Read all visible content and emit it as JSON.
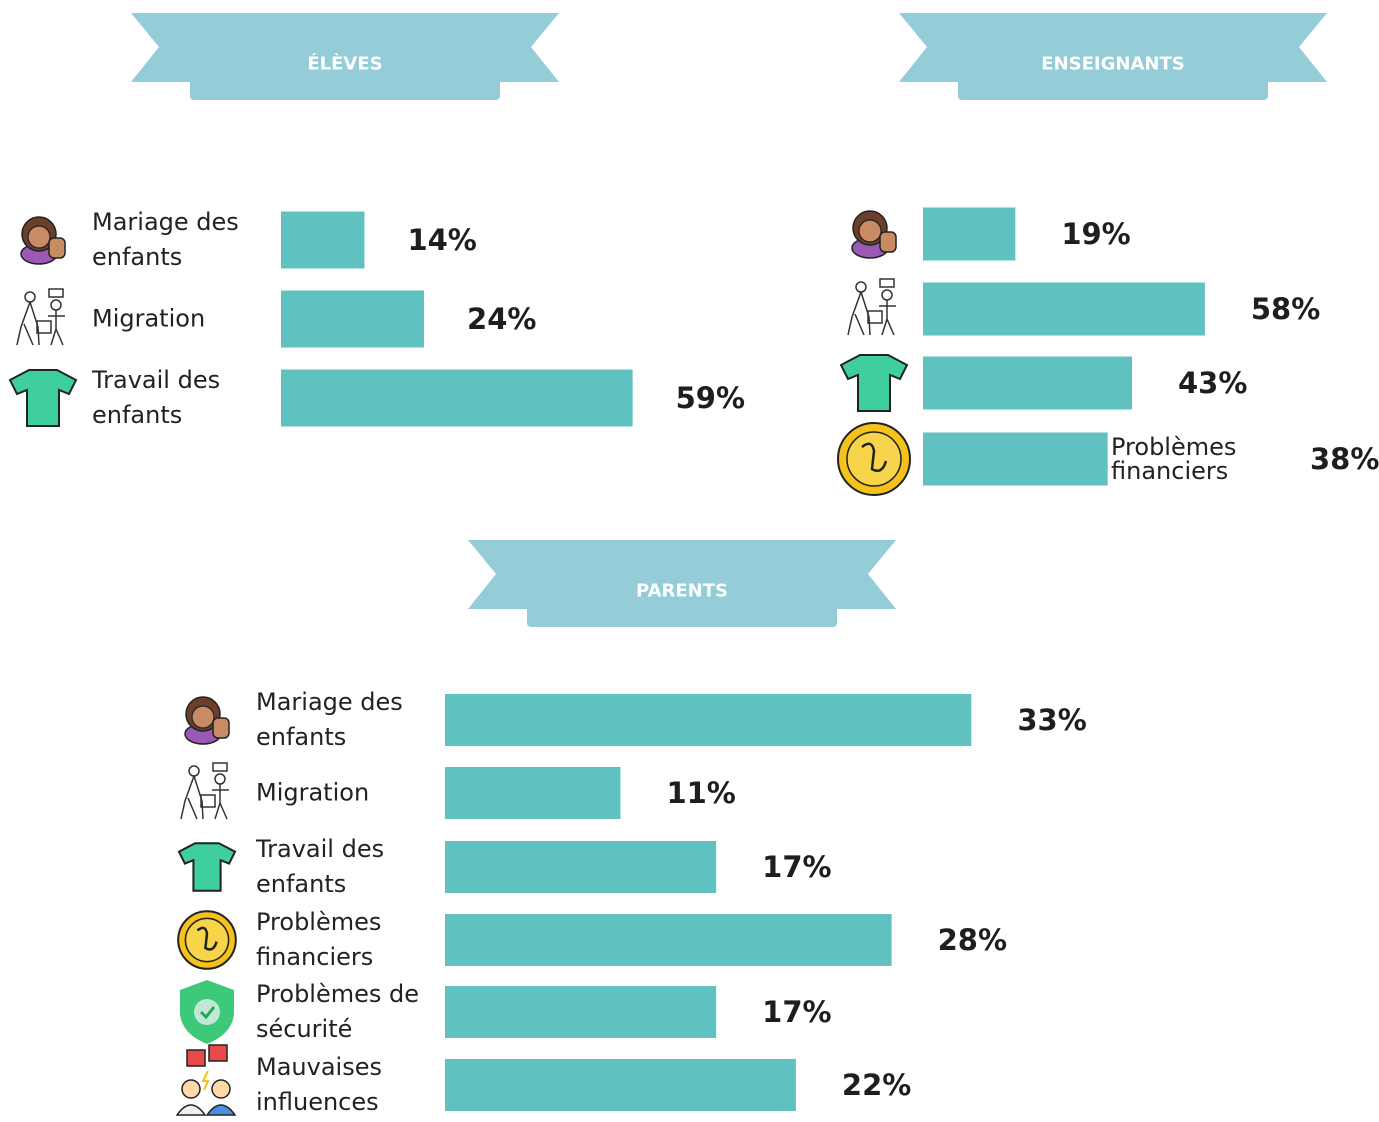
{
  "chart_data": [
    {
      "type": "bar",
      "title": "ÉLÈVES",
      "color": "#5fc1c0",
      "categories": [
        "Mariage des enfants",
        "Migration",
        "Travail des enfants"
      ],
      "values": [
        14,
        24,
        59
      ],
      "value_labels": [
        "14%",
        "24%",
        "59%"
      ]
    },
    {
      "type": "bar",
      "title": "ENSEIGNANTS",
      "color": "#5fc1c0",
      "categories": [
        null,
        null,
        null,
        "Problèmes financiers"
      ],
      "values": [
        19,
        58,
        43,
        38
      ],
      "value_labels": [
        "19%",
        "58%",
        "43%",
        "38%"
      ]
    },
    {
      "type": "bar",
      "title": "PARENTS",
      "color": "#5fc1c0",
      "categories": [
        "Mariage des enfants",
        "Migration",
        "Travail des enfants",
        "Problèmes financiers",
        "Problèmes de sécurité",
        "Mauvaises influences"
      ],
      "values": [
        33,
        11,
        17,
        28,
        17,
        22
      ],
      "value_labels": [
        "33%",
        "11%",
        "17%",
        "28%",
        "17%",
        "22%"
      ]
    }
  ]
}
